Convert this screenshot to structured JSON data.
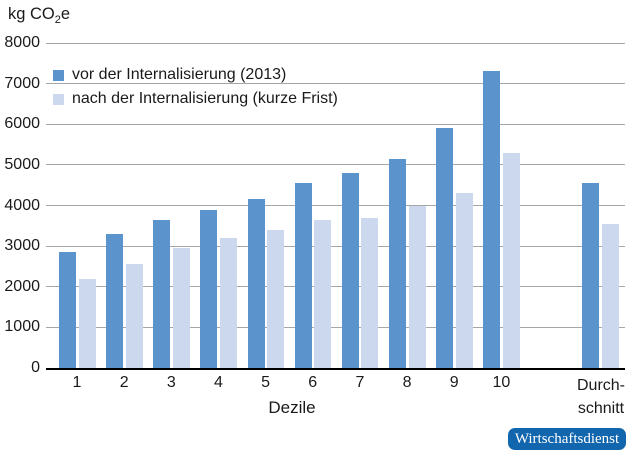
{
  "unit_label": {
    "prefix": "kg CO",
    "sub": "2",
    "suffix": "e"
  },
  "legend": {
    "items": [
      {
        "label": "vor der Internalisierung (2013)"
      },
      {
        "label": "nach der Internalisierung (kurze Frist)"
      }
    ]
  },
  "x_axis": {
    "title": "Dezile",
    "avg_label_line1": "Durch-",
    "avg_label_line2": "schnitt"
  },
  "badge": {
    "text": "Wirtschaftsdienst"
  },
  "colors": {
    "series_vor": "#5b94cd",
    "series_nach": "#cbd8ee",
    "gridline": "#a6a6a6",
    "axis": "#000000",
    "text": "#1a1a1a",
    "badge_bg": "#1166ae",
    "badge_text": "#ffffff"
  },
  "chart_data": {
    "type": "bar",
    "categories": [
      "1",
      "2",
      "3",
      "4",
      "5",
      "6",
      "7",
      "8",
      "9",
      "10",
      "Durchschnitt"
    ],
    "series": [
      {
        "name": "vor der Internalisierung (2013)",
        "color": "#5b94cd",
        "values": [
          2850,
          3300,
          3650,
          3900,
          4150,
          4550,
          4800,
          5150,
          5900,
          7300,
          4550
        ]
      },
      {
        "name": "nach der Internalisierung (kurze Frist)",
        "color": "#cbd8ee",
        "values": [
          2200,
          2550,
          2950,
          3200,
          3400,
          3650,
          3700,
          4000,
          4300,
          5300,
          3550
        ]
      }
    ],
    "title": "",
    "xlabel": "Dezile",
    "ylabel": "kg CO2e",
    "ylim": [
      0,
      8000
    ],
    "ytick_step": 1000,
    "grid": true,
    "legend_position": "top-left-inside"
  }
}
